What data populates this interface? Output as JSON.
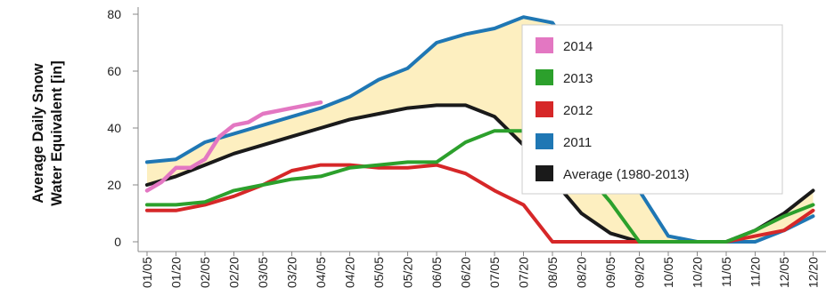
{
  "chart_data": {
    "type": "line",
    "ylabel_lines": [
      "Average Daily Snow",
      "Water Equivalent  [in]"
    ],
    "xlabel": "",
    "title": "",
    "ylim": [
      0,
      80
    ],
    "yticks": [
      0,
      20,
      40,
      60,
      80
    ],
    "x_tick_labels": [
      "01/05",
      "01/20",
      "02/05",
      "02/20",
      "03/05",
      "03/20",
      "04/05",
      "04/20",
      "05/05",
      "05/20",
      "06/05",
      "06/20",
      "07/05",
      "07/20",
      "08/05",
      "08/20",
      "09/05",
      "09/20",
      "10/05",
      "10/20",
      "11/05",
      "11/20",
      "12/05",
      "12/20"
    ],
    "legend_position": "top-right",
    "band": {
      "between": [
        "2011",
        "Average (1980-2013)"
      ],
      "color": "#fdefc0"
    },
    "series": [
      {
        "name": "2014",
        "color": "#e377c2",
        "x": [
          0,
          1,
          2,
          3,
          4,
          5,
          6,
          7,
          8,
          9,
          10,
          11,
          12,
          13,
          14
        ],
        "y": [
          18,
          21,
          26,
          26,
          29,
          37,
          41,
          42,
          45,
          46,
          47,
          48,
          49,
          null,
          null
        ],
        "x_step": 0.5
      },
      {
        "name": "2013",
        "color": "#2ca02c",
        "x": [
          0,
          1,
          2,
          3,
          4,
          5,
          6,
          7,
          8,
          9,
          10,
          11,
          12,
          13,
          14,
          15,
          16,
          17,
          18,
          19,
          20,
          21,
          22,
          23
        ],
        "y": [
          13,
          13,
          14,
          18,
          20,
          22,
          23,
          26,
          27,
          28,
          28,
          35,
          39,
          39,
          32,
          26,
          14,
          0,
          0,
          0,
          0,
          4,
          9,
          13
        ]
      },
      {
        "name": "2012",
        "color": "#d62728",
        "x": [
          0,
          1,
          2,
          3,
          4,
          5,
          6,
          7,
          8,
          9,
          10,
          11,
          12,
          13,
          14,
          15,
          16,
          17,
          18,
          19,
          20,
          21,
          22,
          23
        ],
        "y": [
          11,
          11,
          13,
          16,
          20,
          25,
          27,
          27,
          26,
          26,
          27,
          24,
          18,
          13,
          0,
          0,
          0,
          0,
          0,
          0,
          0,
          2,
          4,
          11
        ]
      },
      {
        "name": "2011",
        "color": "#1f77b4",
        "x": [
          0,
          1,
          2,
          3,
          4,
          5,
          6,
          7,
          8,
          9,
          10,
          11,
          12,
          13,
          14,
          15,
          16,
          17,
          18,
          19,
          20,
          21,
          22,
          23
        ],
        "y": [
          28,
          29,
          35,
          38,
          41,
          44,
          47,
          51,
          57,
          61,
          70,
          73,
          75,
          79,
          77,
          62,
          49,
          18,
          2,
          0,
          0,
          0,
          4,
          9
        ]
      },
      {
        "name": "Average (1980-2013)",
        "color": "#1a1a1a",
        "x": [
          0,
          1,
          2,
          3,
          4,
          5,
          6,
          7,
          8,
          9,
          10,
          11,
          12,
          13,
          14,
          15,
          16,
          17,
          18,
          19,
          20,
          21,
          22,
          23
        ],
        "y": [
          20,
          23,
          27,
          31,
          34,
          37,
          40,
          43,
          45,
          47,
          48,
          48,
          44,
          34,
          22,
          10,
          3,
          0,
          0,
          0,
          0,
          4,
          10,
          18
        ]
      }
    ]
  }
}
